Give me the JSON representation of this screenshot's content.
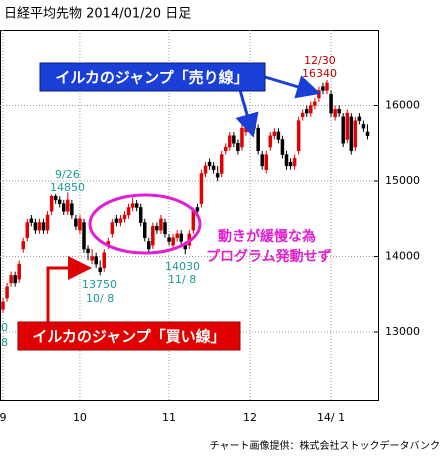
{
  "chart_data": {
    "type": "candlestick",
    "title": "日経平均先物  2014/01/20  日足",
    "footer": "チャート画像提供：株式会社ストックデータバンク",
    "categories": [
      "9",
      null,
      null,
      null,
      null,
      null,
      null,
      null,
      null,
      null,
      null,
      null,
      null,
      null,
      null,
      null,
      null,
      null,
      null,
      "10",
      null,
      null,
      null,
      null,
      null,
      null,
      null,
      null,
      null,
      null,
      null,
      null,
      null,
      null,
      null,
      null,
      null,
      null,
      null,
      null,
      null,
      "11",
      null,
      null,
      null,
      null,
      null,
      null,
      null,
      null,
      null,
      null,
      null,
      null,
      null,
      null,
      null,
      null,
      null,
      null,
      null,
      "12",
      null,
      null,
      null,
      null,
      null,
      null,
      null,
      null,
      null,
      null,
      null,
      null,
      null,
      null,
      null,
      null,
      null,
      null,
      null,
      "14/ 1",
      null,
      null,
      null,
      null,
      null,
      null,
      null,
      null,
      null
    ],
    "candles": {
      "open": [
        13300,
        13450,
        13650,
        13750,
        13700,
        14100,
        14250,
        14500,
        14450,
        14350,
        14450,
        14350,
        14600,
        14800,
        14750,
        14700,
        14600,
        14700,
        14500,
        14350,
        14450,
        14100,
        13950,
        14000,
        13850,
        13850,
        14150,
        14300,
        14500,
        14450,
        14500,
        14550,
        14650,
        14700,
        14650,
        14450,
        14200,
        14150,
        14400,
        14350,
        14450,
        14250,
        14150,
        14250,
        14300,
        14150,
        14150,
        14350,
        14650,
        14700,
        15100,
        15250,
        15200,
        15100,
        15100,
        15400,
        15450,
        15600,
        15500,
        15450,
        15650,
        15750,
        15700,
        15700,
        15350,
        15150,
        15450,
        15600,
        15650,
        15550,
        15350,
        15250,
        15200,
        15400,
        15850,
        15950,
        15900,
        16000,
        16100,
        16250,
        16200,
        16150,
        15850,
        15950,
        15850,
        15550,
        15850,
        15450,
        15850,
        15750,
        15650
      ],
      "high": [
        13450,
        13650,
        13800,
        13800,
        13950,
        14250,
        14500,
        14550,
        14500,
        14500,
        14500,
        14600,
        14820,
        14830,
        14800,
        14750,
        14850,
        14750,
        14550,
        14550,
        14500,
        14150,
        14100,
        14050,
        13950,
        14100,
        14250,
        14500,
        14550,
        14550,
        14600,
        14700,
        14780,
        14750,
        14700,
        14500,
        14250,
        14450,
        14450,
        14550,
        14500,
        14300,
        14300,
        14350,
        14350,
        14200,
        14350,
        14650,
        14700,
        15150,
        15250,
        15300,
        15250,
        15200,
        15400,
        15500,
        15650,
        15650,
        15550,
        15750,
        15750,
        15800,
        15800,
        15750,
        15400,
        15400,
        15650,
        15700,
        15700,
        15600,
        15400,
        15300,
        15350,
        15850,
        15950,
        16000,
        16050,
        16100,
        16250,
        16300,
        16340,
        16200,
        16000,
        16000,
        15900,
        15950,
        15900,
        15850,
        15900,
        15800,
        15750
      ],
      "low": [
        13250,
        13400,
        13600,
        13600,
        13650,
        14050,
        14200,
        14400,
        14300,
        14300,
        14300,
        14300,
        14550,
        14700,
        14650,
        14550,
        14550,
        14500,
        14350,
        14300,
        14050,
        13950,
        13900,
        13850,
        13750,
        13800,
        14100,
        14250,
        14400,
        14400,
        14450,
        14500,
        14600,
        14600,
        14400,
        14200,
        14050,
        14100,
        14300,
        14300,
        14250,
        14150,
        14100,
        14200,
        14150,
        14030,
        14100,
        14300,
        14550,
        14650,
        15050,
        15150,
        15100,
        15000,
        15050,
        15350,
        15400,
        15450,
        15350,
        15400,
        15600,
        15650,
        15650,
        15350,
        15150,
        15100,
        15400,
        15550,
        15500,
        15300,
        15150,
        15150,
        15150,
        15350,
        15800,
        15850,
        15850,
        15950,
        16050,
        16150,
        16150,
        15850,
        15800,
        15850,
        15450,
        15500,
        15350,
        15400,
        15750,
        15650,
        15550
      ],
      "close": [
        13400,
        13600,
        13750,
        13650,
        13900,
        14200,
        14450,
        14450,
        14350,
        14450,
        14350,
        14550,
        14800,
        14750,
        14700,
        14600,
        14750,
        14550,
        14400,
        14500,
        14100,
        14050,
        14000,
        13900,
        13800,
        14050,
        14200,
        14450,
        14450,
        14500,
        14550,
        14650,
        14700,
        14650,
        14450,
        14250,
        14100,
        14400,
        14350,
        14500,
        14300,
        14200,
        14250,
        14300,
        14200,
        14100,
        14300,
        14600,
        14600,
        15100,
        15200,
        15200,
        15150,
        15050,
        15350,
        15450,
        15600,
        15500,
        15400,
        15700,
        15700,
        15700,
        15750,
        15400,
        15200,
        15350,
        15600,
        15650,
        15550,
        15350,
        15200,
        15200,
        15300,
        15800,
        15900,
        15900,
        16000,
        16050,
        16200,
        16200,
        16300,
        15900,
        15950,
        15900,
        15500,
        15900,
        15400,
        15800,
        15800,
        15700,
        15600
      ],
      "up_color": "#e00000",
      "down_color": "#000000"
    },
    "ylim": [
      12100,
      17000
    ],
    "yticks": [
      13000,
      14000,
      15000,
      16000
    ],
    "grid": true,
    "annotations": {
      "peak_sep": [
        "9/26",
        "14850"
      ],
      "low_oct": [
        "13750",
        "10/ 8"
      ],
      "low_nov": [
        "14030",
        "11/ 8"
      ],
      "peak_dec": [
        "12/30",
        "16340"
      ],
      "left_edge": [
        "0",
        "8"
      ],
      "sell_line": "イルカのジャンプ「売り線」",
      "buy_line": "イルカのジャンプ「買い線」",
      "note": [
        "動きが緩慢な為",
        "プログラム発動せず"
      ]
    }
  }
}
